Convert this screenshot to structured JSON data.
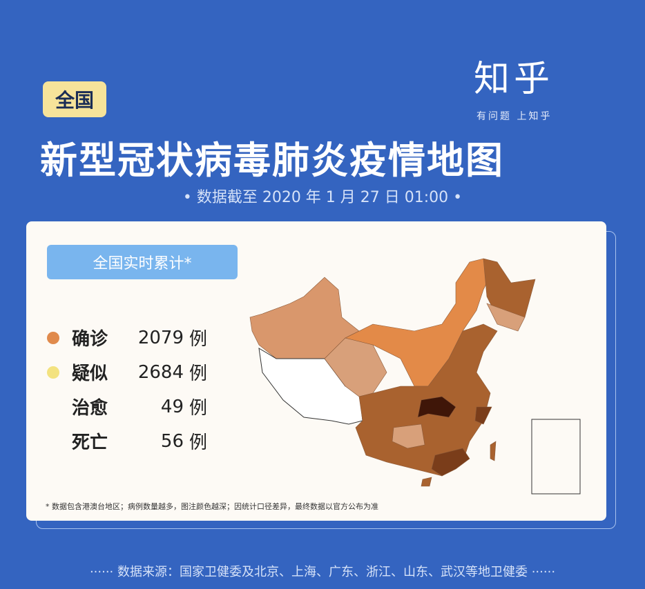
{
  "brand": {
    "logo": "知乎",
    "slogan": "有问题 上知乎"
  },
  "header": {
    "badge": "全国",
    "title": "新型冠状病毒肺炎疫情地图",
    "date": "• 数据截至 2020 年 1 月 27 日 01:00 •"
  },
  "card": {
    "pill": "全国实时累计*",
    "stats": [
      {
        "label": "确诊",
        "value": "2079",
        "unit": "例",
        "color": "#e08a4c"
      },
      {
        "label": "疑似",
        "value": "2684",
        "unit": "例",
        "color": "#f3e27f"
      },
      {
        "label": "治愈",
        "value": "49",
        "unit": "例",
        "color": null
      },
      {
        "label": "死亡",
        "value": "56",
        "unit": "例",
        "color": null
      }
    ],
    "note": "* 数据包含港澳台地区；病例数量越多，图注颜色越深；因统计口径差异，最终数据以官方公布为准",
    "map_colors": {
      "lightest": "#d9976c",
      "light": "#d8a07a",
      "orange": "#e38a48",
      "medium": "#a9622f",
      "dark": "#7a3d1a",
      "darkest": "#3f1608"
    }
  },
  "footer": {
    "source": "······ 数据来源：国家卫健委及北京、上海、广东、浙江、山东、武汉等地卫健委 ······"
  }
}
